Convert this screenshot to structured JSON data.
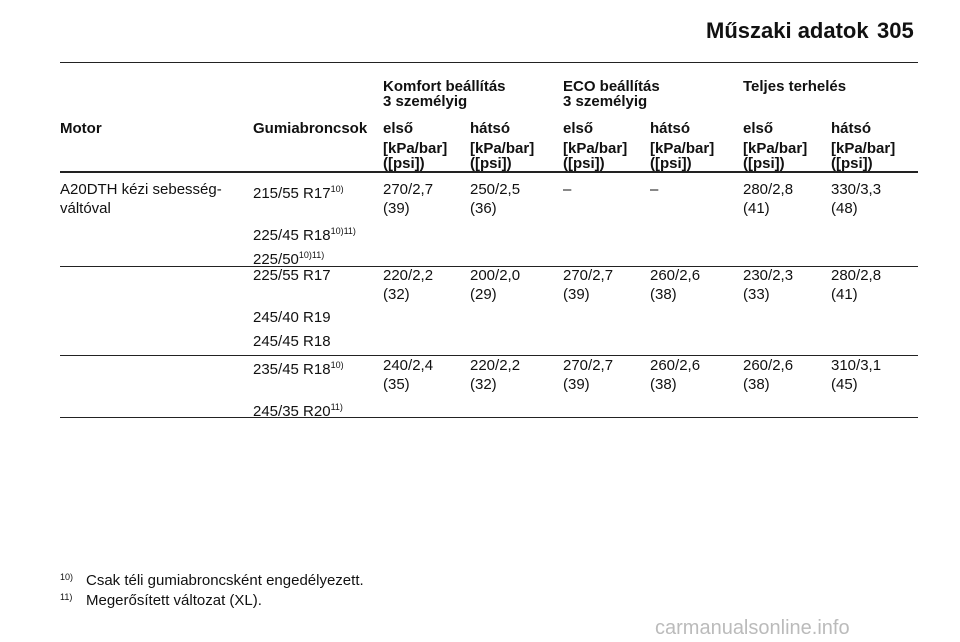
{
  "header": {
    "title": "Műszaki adatok",
    "page": "305"
  },
  "table": {
    "group_headers": [
      {
        "column": 2,
        "lines": [
          "Komfort beállítás",
          "3 személyig"
        ]
      },
      {
        "column": 4,
        "lines": [
          "ECO beállítás",
          "3 személyig"
        ]
      },
      {
        "column": 6,
        "lines": [
          "Teljes terhelés"
        ]
      }
    ],
    "columns": [
      "Motor",
      "Gumiabroncsok",
      "első",
      "hátsó",
      "első",
      "hátsó",
      "első",
      "hátsó"
    ],
    "units": [
      [
        "[kPa/bar]",
        "([psi])"
      ],
      [
        "[kPa/bar]",
        "([psi])"
      ],
      [
        "[kPa/bar]",
        "([psi])"
      ],
      [
        "[kPa/bar]",
        "([psi])"
      ],
      [
        "[kPa/bar]",
        "([psi])"
      ],
      [
        "[kPa/bar]",
        "([psi])"
      ]
    ],
    "rows": [
      {
        "motor": [
          "A20DTH kézi sebesség-",
          "váltóval"
        ],
        "tires": [
          {
            "size": "215/55 R17",
            "notes": [
              "10)"
            ]
          },
          {
            "size": "225/45 R18",
            "notes": [
              "10)",
              "11)"
            ]
          },
          {
            "size": "225/50",
            "notes": [
              "10)",
              "11)"
            ]
          }
        ],
        "values": [
          [
            "270/2,7",
            "(39)"
          ],
          [
            "250/2,5",
            "(36)"
          ],
          [
            "–"
          ],
          [
            "–"
          ],
          [
            "280/2,8",
            "(41)"
          ],
          [
            "330/3,3",
            "(48)"
          ]
        ]
      },
      {
        "tires": [
          {
            "size": "225/55 R17"
          },
          {
            "size": "245/40 R19"
          },
          {
            "size": "245/45 R18"
          }
        ],
        "values": [
          [
            "220/2,2",
            "(32)"
          ],
          [
            "200/2,0",
            "(29)"
          ],
          [
            "270/2,7",
            "(39)"
          ],
          [
            "260/2,6",
            "(38)"
          ],
          [
            "230/2,3",
            "(33)"
          ],
          [
            "280/2,8",
            "(41)"
          ]
        ]
      },
      {
        "tires": [
          {
            "size": "235/45 R18",
            "notes": [
              "10)"
            ]
          },
          {
            "size": "245/35 R20",
            "notes": [
              "11)"
            ]
          }
        ],
        "values": [
          [
            "240/2,4",
            "(35)"
          ],
          [
            "220/2,2",
            "(32)"
          ],
          [
            "270/2,7",
            "(39)"
          ],
          [
            "260/2,6",
            "(38)"
          ],
          [
            "260/2,6",
            "(38)"
          ],
          [
            "310/3,1",
            "(45)"
          ]
        ]
      }
    ]
  },
  "footnotes": [
    {
      "mark": "10)",
      "text": "Csak téli gumiabroncsként engedélyezett."
    },
    {
      "mark": "11)",
      "text": "Megerősített változat (XL)."
    }
  ],
  "watermark": "carmanualsonline.info"
}
